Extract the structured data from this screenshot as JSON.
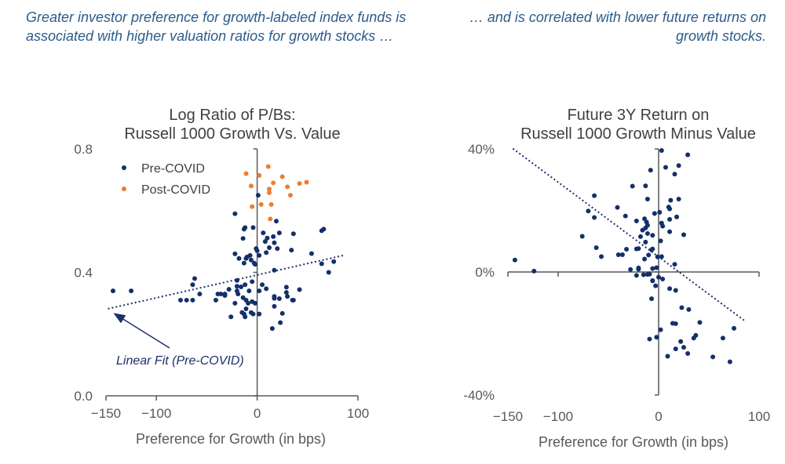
{
  "header": {
    "left": "Greater investor preference for growth-labeled index funds is associated with higher valuation ratios for growth stocks …",
    "right": "… and is correlated with lower future returns on growth stocks."
  },
  "colors": {
    "pre_covid": "#14306b",
    "post_covid": "#ed7d31",
    "header_text": "#2b5c8a",
    "axis": "#595959"
  },
  "chart_data": [
    {
      "type": "scatter",
      "title": [
        "Log Ratio of P/Bs:",
        "Russell 1000 Growth Vs. Value"
      ],
      "xlabel": "Preference for Growth (in bps)",
      "ylabel": "",
      "xlim": [
        -150,
        100
      ],
      "ylim": [
        0.0,
        0.8
      ],
      "xticks": [
        "−150",
        "−100",
        "0",
        "100"
      ],
      "xtick_values": [
        -150,
        -100,
        0,
        100
      ],
      "yticks": [
        "0.0",
        "0.4",
        "0.8"
      ],
      "ytick_values": [
        0.0,
        0.4,
        0.8
      ],
      "grid": false,
      "legend": "top-left",
      "annotation": "Linear Fit (Pre-COVID)",
      "trendline": {
        "series": "Pre-COVID",
        "x": [
          -148,
          87
        ],
        "y": [
          0.282,
          0.456
        ]
      },
      "series": [
        {
          "name": "Pre-COVID",
          "points": [
            [
              -143,
              0.34
            ],
            [
              -125,
              0.34
            ],
            [
              -76,
              0.31
            ],
            [
              -70,
              0.31
            ],
            [
              -64,
              0.31
            ],
            [
              -62,
              0.38
            ],
            [
              -64,
              0.36
            ],
            [
              -57,
              0.33
            ],
            [
              -41,
              0.31
            ],
            [
              -39,
              0.33
            ],
            [
              -36,
              0.33
            ],
            [
              -32,
              0.33
            ],
            [
              -32,
              0.325
            ],
            [
              -28,
              0.345
            ],
            [
              -22,
              0.59
            ],
            [
              -22,
              0.46
            ],
            [
              -18,
              0.445
            ],
            [
              -20,
              0.374
            ],
            [
              -20,
              0.355
            ],
            [
              -20,
              0.34
            ],
            [
              -19,
              0.33
            ],
            [
              -22,
              0.3
            ],
            [
              -26,
              0.256
            ],
            [
              -14,
              0.51
            ],
            [
              -13,
              0.54
            ],
            [
              -12,
              0.545
            ],
            [
              -4,
              0.545
            ],
            [
              -13,
              0.43
            ],
            [
              -11,
              0.445
            ],
            [
              -10,
              0.45
            ],
            [
              -7,
              0.455
            ],
            [
              -6,
              0.44
            ],
            [
              -3,
              0.43
            ],
            [
              -2,
              0.426
            ],
            [
              -1,
              0.477
            ],
            [
              0,
              0.47
            ],
            [
              2,
              0.455
            ],
            [
              1,
              0.65
            ],
            [
              -16,
              0.353
            ],
            [
              -12,
              0.36
            ],
            [
              -5,
              0.37
            ],
            [
              -8,
              0.34
            ],
            [
              -14,
              0.318
            ],
            [
              -11,
              0.31
            ],
            [
              -9,
              0.3
            ],
            [
              -5,
              0.305
            ],
            [
              -2,
              0.3
            ],
            [
              -11,
              0.282
            ],
            [
              -15,
              0.27
            ],
            [
              -13,
              0.265
            ],
            [
              -12,
              0.256
            ],
            [
              -6,
              0.27
            ],
            [
              -4,
              0.265
            ],
            [
              2,
              0.265
            ],
            [
              2,
              0.34
            ],
            [
              5,
              0.36
            ],
            [
              6,
              0.528
            ],
            [
              10,
              0.511
            ],
            [
              8,
              0.5
            ],
            [
              16,
              0.516
            ],
            [
              22,
              0.528
            ],
            [
              19,
              0.566
            ],
            [
              17,
              0.496
            ],
            [
              12,
              0.48
            ],
            [
              20,
              0.477
            ],
            [
              9,
              0.464
            ],
            [
              34,
              0.472
            ],
            [
              36,
              0.525
            ],
            [
              17,
              0.407
            ],
            [
              9,
              0.347
            ],
            [
              17,
              0.322
            ],
            [
              17,
              0.316
            ],
            [
              22,
              0.315
            ],
            [
              17,
              0.29
            ],
            [
              25,
              0.267
            ],
            [
              23,
              0.237
            ],
            [
              15,
              0.218
            ],
            [
              29,
              0.352
            ],
            [
              29,
              0.335
            ],
            [
              30,
              0.322
            ],
            [
              35,
              0.31
            ],
            [
              36,
              0.31
            ],
            [
              42,
              0.344
            ],
            [
              54,
              0.461
            ],
            [
              64,
              0.535
            ],
            [
              66,
              0.54
            ],
            [
              64,
              0.428
            ],
            [
              76,
              0.435
            ],
            [
              71,
              0.4
            ]
          ]
        },
        {
          "name": "Post-COVID",
          "points": [
            [
              -11,
              0.72
            ],
            [
              2,
              0.714
            ],
            [
              11,
              0.743
            ],
            [
              25,
              0.71
            ],
            [
              -6,
              0.68
            ],
            [
              16,
              0.69
            ],
            [
              12,
              0.67
            ],
            [
              12,
              0.658
            ],
            [
              30,
              0.677
            ],
            [
              33,
              0.65
            ],
            [
              42,
              0.688
            ],
            [
              49,
              0.692
            ],
            [
              -5,
              0.613
            ],
            [
              4,
              0.62
            ],
            [
              14,
              0.62
            ],
            [
              13,
              0.573
            ]
          ]
        }
      ]
    },
    {
      "type": "scatter",
      "title": [
        "Future 3Y Return on",
        "Russell 1000 Growth Minus Value"
      ],
      "xlabel": "Preference for Growth (in bps)",
      "ylabel": "",
      "xlim": [
        -150,
        100
      ],
      "ylim": [
        -40,
        40
      ],
      "xticks": [
        "−150",
        "−100",
        "0",
        "100"
      ],
      "xtick_values": [
        -150,
        -100,
        0,
        100
      ],
      "yticks": [
        "-40%",
        "0%",
        "40%"
      ],
      "ytick_values": [
        -40,
        0,
        40
      ],
      "grid": false,
      "trendline": {
        "x": [
          -145,
          87
        ],
        "y": [
          40.1,
          -16.2
        ]
      },
      "series": [
        {
          "points": [
            [
              3,
              39.5
            ],
            [
              29,
              38.1
            ],
            [
              -8,
              33.1
            ],
            [
              7,
              34
            ],
            [
              20,
              34.6
            ],
            [
              16,
              31.8
            ],
            [
              -26,
              27.9
            ],
            [
              -13,
              28
            ],
            [
              -64,
              24.8
            ],
            [
              -11,
              23.7
            ],
            [
              12,
              23.3
            ],
            [
              20,
              23.7
            ],
            [
              -41,
              21
            ],
            [
              -70,
              19.8
            ],
            [
              10,
              21.1
            ],
            [
              11,
              20.5
            ],
            [
              1,
              19.4
            ],
            [
              -4,
              19
            ],
            [
              -33,
              18.2
            ],
            [
              -64,
              17.7
            ],
            [
              18,
              17.9
            ],
            [
              11,
              17.1
            ],
            [
              -22,
              16.6
            ],
            [
              -14,
              17.3
            ],
            [
              -12,
              16.2
            ],
            [
              3,
              15.9
            ],
            [
              4,
              14.9
            ],
            [
              -11,
              15.2
            ],
            [
              -13,
              14.3
            ],
            [
              -16,
              13.6
            ],
            [
              11,
              13.1
            ],
            [
              -11,
              12.5
            ],
            [
              -6,
              11.9
            ],
            [
              25,
              12.1
            ],
            [
              -76,
              11.6
            ],
            [
              -18,
              11.5
            ],
            [
              2,
              10.1
            ],
            [
              -13,
              9.7
            ],
            [
              -62,
              7.9
            ],
            [
              -32,
              7.4
            ],
            [
              -22,
              7.5
            ],
            [
              -20,
              7.6
            ],
            [
              -6,
              7.5
            ],
            [
              -7,
              7.2
            ],
            [
              -57,
              5
            ],
            [
              -40,
              5.6
            ],
            [
              -36,
              5.6
            ],
            [
              -10,
              5.5
            ],
            [
              -1,
              4.9
            ],
            [
              3,
              5
            ],
            [
              -14,
              4.2
            ],
            [
              -143,
              3.9
            ],
            [
              16,
              2.5
            ],
            [
              -124,
              0.3
            ],
            [
              -28,
              0.8
            ],
            [
              -20,
              1.3
            ],
            [
              -20,
              0.9
            ],
            [
              -6,
              1.1
            ],
            [
              -2,
              1.4
            ],
            [
              -22,
              -1.1
            ],
            [
              -15,
              -0.9
            ],
            [
              -11,
              -0.8
            ],
            [
              -10,
              -0.6
            ],
            [
              -9,
              -0.7
            ],
            [
              0,
              -1.7
            ],
            [
              4,
              -2.3
            ],
            [
              -6,
              -2.8
            ],
            [
              -6,
              -2.9
            ],
            [
              -3,
              -4.5
            ],
            [
              11,
              -5.4
            ],
            [
              17,
              -6
            ],
            [
              -7,
              -8.7
            ],
            [
              23,
              -11.6
            ],
            [
              30,
              -12.2
            ],
            [
              14,
              -16.7
            ],
            [
              17,
              -16.8
            ],
            [
              41,
              -16.4
            ],
            [
              75,
              -18.3
            ],
            [
              2,
              -18.8
            ],
            [
              -9,
              -21.8
            ],
            [
              -2,
              -21.2
            ],
            [
              35,
              -21.5
            ],
            [
              37,
              -20.6
            ],
            [
              64,
              -21.5
            ],
            [
              22,
              -22.6
            ],
            [
              25,
              -24.5
            ],
            [
              17,
              -25
            ],
            [
              29,
              -26.5
            ],
            [
              9,
              -27.4
            ],
            [
              54,
              -27.6
            ],
            [
              71,
              -29.2
            ]
          ]
        }
      ]
    }
  ]
}
